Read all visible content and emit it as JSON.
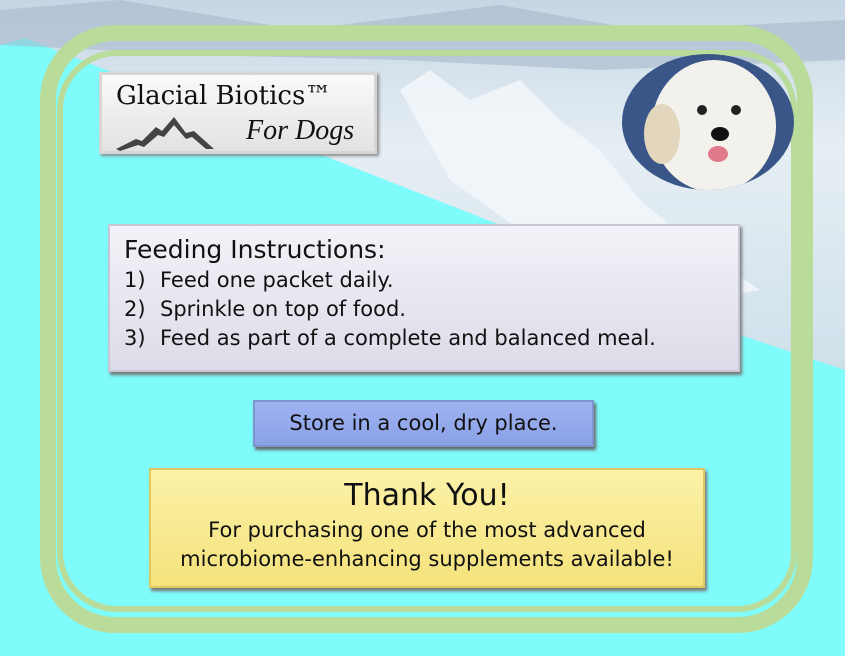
{
  "logo": {
    "title": "Glacial Biotics™",
    "subtitle": "For Dogs"
  },
  "feeding": {
    "heading": "Feeding Instructions:",
    "steps": [
      {
        "num": "1)",
        "text": "Feed one packet daily."
      },
      {
        "num": "2)",
        "text": "Sprinkle on top of food."
      },
      {
        "num": "3)",
        "text": "Feed as part of a complete and balanced meal."
      }
    ]
  },
  "storage": "Store in a cool, dry place.",
  "thanks": {
    "heading": "Thank You!",
    "line1": "For purchasing one of the most advanced",
    "line2": "microbiome-enhancing supplements available!"
  },
  "colors": {
    "background": "#7ffbfb",
    "frame": "#b9dc9a",
    "storage_box": "#9fb3f2",
    "thanks_box": "#fcf2a8"
  }
}
